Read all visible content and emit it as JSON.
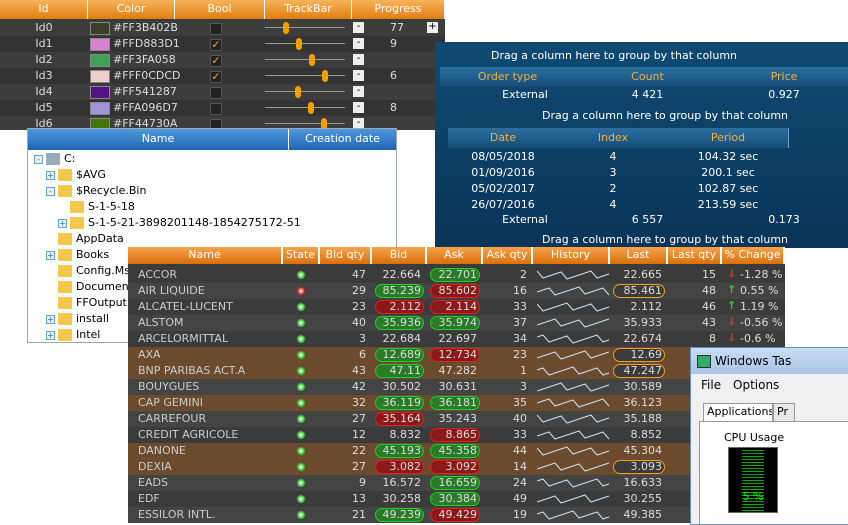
{
  "color_grid": {
    "columns": [
      "Id",
      "Color",
      "Bool",
      "TrackBar",
      "Progress"
    ],
    "rows": [
      {
        "id": "Id0",
        "color": "#FF3B402B",
        "checked": false,
        "progress": "77"
      },
      {
        "id": "Id1",
        "color": "#FFD883D1",
        "checked": true,
        "progress": "9"
      },
      {
        "id": "Id2",
        "color": "#FF3FA058",
        "checked": true,
        "progress": null
      },
      {
        "id": "Id3",
        "color": "#FFF0CDCD",
        "checked": true,
        "progress": "6"
      },
      {
        "id": "Id4",
        "color": "#FF541287",
        "checked": false,
        "progress": null
      },
      {
        "id": "Id5",
        "color": "#FFA096D7",
        "checked": false,
        "progress": "8"
      },
      {
        "id": "Id6",
        "color": "#FF44730A",
        "checked": false,
        "progress": null
      }
    ]
  },
  "tree": {
    "columns": [
      "Name",
      "Creation date"
    ],
    "items": [
      {
        "label": "C:",
        "level": 0
      },
      {
        "label": "$AVG",
        "level": 1
      },
      {
        "label": "$Recycle.Bin",
        "level": 1
      },
      {
        "label": "S-1-5-18",
        "level": 2
      },
      {
        "label": "S-1-5-21-3898201148-1854275172-51",
        "level": 2
      },
      {
        "label": "AppData",
        "level": 1
      },
      {
        "label": "Books",
        "level": 1
      },
      {
        "label": "Config.Ms",
        "level": 1
      },
      {
        "label": "Document",
        "level": 1
      },
      {
        "label": "FFOutput",
        "level": 1
      },
      {
        "label": "install",
        "level": 1
      },
      {
        "label": "Intel",
        "level": 1
      }
    ]
  },
  "group_grid": {
    "drag_hint": "Drag a column here to group by that column",
    "columns": [
      "Order type",
      "Count",
      "Price"
    ],
    "rows": [
      [
        "External",
        "4 421",
        "0.927"
      ],
      [
        "External",
        "6 557",
        "0.173"
      ]
    ],
    "detail_columns": [
      "Date",
      "Index",
      "Period"
    ],
    "detail_rows": [
      [
        "08/05/2018",
        "4",
        "104.32 sec"
      ],
      [
        "01/09/2016",
        "3",
        "200.1 sec"
      ],
      [
        "05/02/2017",
        "2",
        "102.87 sec"
      ],
      [
        "26/07/2016",
        "4",
        "213.59 sec"
      ]
    ]
  },
  "stock_grid": {
    "columns": [
      "Name",
      "State",
      "Bid qty",
      "Bid",
      "Ask",
      "Ask qty",
      "History",
      "Last",
      "Last qty",
      "% Change"
    ],
    "rows": [
      [
        "ACCOR",
        "green",
        "47",
        "22.664",
        "22.701",
        "2",
        "22.665",
        "15",
        "-1.28 %"
      ],
      [
        "AIR LIQUIDE",
        "red",
        "29",
        "85.239",
        "85.602",
        "16",
        "85.461",
        "48",
        "0.55 %"
      ],
      [
        "ALCATEL-LUCENT",
        "green",
        "23",
        "2.112",
        "2.114",
        "33",
        "2.112",
        "46",
        "1.19 %"
      ],
      [
        "ALSTOM",
        "green",
        "40",
        "35.936",
        "35.974",
        "37",
        "35.933",
        "43",
        "-0.56 %"
      ],
      [
        "ARCELORMITTAL",
        "green",
        "3",
        "22.684",
        "22.697",
        "34",
        "22.674",
        "8",
        "-0.6 %"
      ],
      [
        "AXA",
        "green",
        "6",
        "12.689",
        "12.734",
        "23",
        "12.69",
        null,
        null
      ],
      [
        "BNP PARIBAS ACT.A",
        "green",
        "43",
        "47.11",
        "47.282",
        "1",
        "47.247",
        null,
        null
      ],
      [
        "BOUYGUES",
        "green",
        "42",
        "30.502",
        "30.631",
        "3",
        "30.589",
        null,
        null
      ],
      [
        "CAP GEMINI",
        "green",
        "32",
        "36.119",
        "36.181",
        "35",
        "36.123",
        null,
        null
      ],
      [
        "CARREFOUR",
        "green",
        "27",
        "35.164",
        "35.243",
        "40",
        "35.188",
        null,
        null
      ],
      [
        "CREDIT AGRICOLE",
        "green",
        "12",
        "8.832",
        "8.865",
        "33",
        "8.852",
        null,
        null
      ],
      [
        "DANONE",
        "green",
        "22",
        "45.193",
        "45.358",
        "44",
        "45.304",
        null,
        null
      ],
      [
        "DEXIA",
        "green",
        "27",
        "3.082",
        "3.092",
        "14",
        "3.093",
        null,
        null
      ],
      [
        "EADS",
        "green",
        "9",
        "16.572",
        "16.659",
        "24",
        "16.633",
        null,
        null
      ],
      [
        "EDF",
        "green",
        "13",
        "30.258",
        "30.384",
        "49",
        "30.255",
        null,
        null
      ],
      [
        "ESSILOR INTL.",
        "green",
        "21",
        "49.239",
        "49.429",
        "19",
        "49.385",
        null,
        null
      ]
    ],
    "bid_marks": [
      "none",
      "green",
      "red",
      "green",
      "none",
      "green",
      "green",
      "none",
      "green",
      "red",
      "none",
      "green",
      "red",
      "none",
      "none",
      "green"
    ],
    "ask_marks": [
      "green",
      "red",
      "red",
      "green",
      "none",
      "red",
      "none",
      "none",
      "green",
      "none",
      "red",
      "green",
      "red",
      "green",
      "green",
      "red"
    ],
    "last_marks": [
      "none",
      "orange",
      "none",
      "none",
      "none",
      "orange",
      "orange",
      "none",
      "none",
      "none",
      "none",
      "none",
      "orange",
      "none",
      "none",
      "none"
    ],
    "highlighted": [
      false,
      false,
      false,
      false,
      false,
      true,
      true,
      false,
      true,
      false,
      false,
      true,
      true,
      false,
      false,
      false
    ]
  },
  "task_manager": {
    "title": "Windows Tas",
    "menu": [
      "File",
      "Options"
    ],
    "tabs": [
      "Applications",
      "Pr"
    ],
    "group": "CPU Usage",
    "cpu": "5 %"
  }
}
